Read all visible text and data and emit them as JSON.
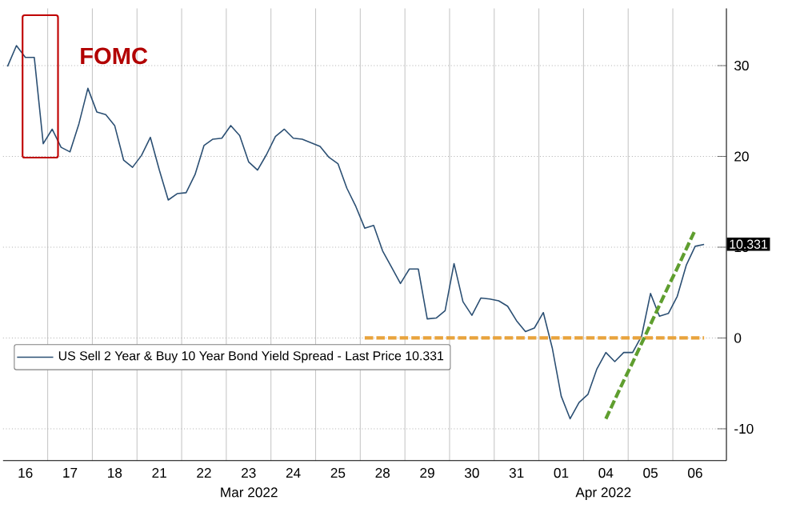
{
  "chart_data": {
    "type": "line",
    "annotations": [
      "FOMC",
      {
        "text": "10.331",
        "y": 10.331
      },
      "Mar 2022",
      "Apr 2022"
    ],
    "categories": [
      null,
      null,
      "16",
      null,
      null,
      null,
      null,
      "17",
      null,
      null,
      null,
      null,
      "18",
      null,
      null,
      null,
      null,
      "21",
      null,
      null,
      null,
      null,
      "22",
      null,
      null,
      null,
      null,
      "23",
      null,
      null,
      null,
      null,
      "24",
      null,
      null,
      null,
      null,
      "25",
      null,
      null,
      null,
      null,
      "28",
      null,
      null,
      null,
      null,
      "29",
      null,
      null,
      null,
      null,
      "30",
      null,
      null,
      null,
      null,
      "31",
      null,
      null,
      null,
      null,
      "01",
      null,
      null,
      null,
      null,
      "04",
      null,
      null,
      null,
      null,
      "05",
      null,
      null,
      null,
      null,
      "06",
      null
    ],
    "ylim": [
      -13.5,
      36.3
    ],
    "yticks": [
      -10,
      0,
      10,
      20,
      30
    ],
    "grid": true,
    "legend": "bottom left",
    "series": [
      {
        "name": "US Sell 2 Year & Buy 10 Year Bond Yield Spread - Last Price 10.331",
        "color": "#2b4f73",
        "values": [
          29.9,
          32.2,
          30.9,
          30.9,
          21.4,
          23.0,
          21.0,
          20.5,
          23.6,
          27.5,
          24.9,
          24.6,
          23.4,
          19.6,
          18.8,
          20.1,
          22.1,
          18.5,
          15.2,
          15.9,
          16.0,
          18.0,
          21.2,
          21.9,
          22.0,
          23.4,
          22.3,
          19.4,
          18.5,
          20.2,
          22.2,
          23.0,
          22.0,
          21.9,
          21.5,
          21.1,
          19.9,
          19.2,
          16.5,
          14.5,
          12.1,
          12.4,
          9.6,
          7.8,
          6.0,
          7.6,
          7.6,
          2.1,
          2.2,
          3.0,
          8.2,
          4.0,
          2.5,
          4.4,
          4.3,
          4.1,
          3.5,
          1.9,
          0.7,
          1.1,
          2.8,
          -1.1,
          -6.4,
          -8.9,
          -7.1,
          -6.2,
          -3.4,
          -1.6,
          -2.6,
          -1.6,
          -1.6,
          0.2,
          4.9,
          2.4,
          2.7,
          4.6,
          8.0,
          10.1,
          10.3
        ]
      },
      {
        "color": "#e8a33c",
        "line_style": "dashed",
        "values": [
          null,
          null,
          null,
          null,
          null,
          null,
          null,
          null,
          null,
          null,
          null,
          null,
          null,
          null,
          null,
          null,
          null,
          null,
          null,
          null,
          null,
          null,
          null,
          null,
          null,
          null,
          null,
          null,
          null,
          null,
          null,
          null,
          null,
          null,
          null,
          null,
          null,
          null,
          null,
          null,
          0,
          0,
          0,
          0,
          0,
          0,
          0,
          0,
          0,
          0,
          0,
          0,
          0,
          0,
          0,
          0,
          0,
          0,
          0,
          0,
          0,
          0,
          0,
          0,
          0,
          0,
          0,
          0,
          0,
          0,
          0,
          0,
          0,
          0,
          0,
          0,
          0,
          0,
          0
        ]
      },
      {
        "color": "#5f9e2f",
        "line_style": "dashed",
        "values": [
          null,
          null,
          null,
          null,
          null,
          null,
          null,
          null,
          null,
          null,
          null,
          null,
          null,
          null,
          null,
          null,
          null,
          null,
          null,
          null,
          null,
          null,
          null,
          null,
          null,
          null,
          null,
          null,
          null,
          null,
          null,
          null,
          null,
          null,
          null,
          null,
          null,
          null,
          null,
          null,
          null,
          null,
          null,
          null,
          null,
          null,
          null,
          null,
          null,
          null,
          null,
          null,
          null,
          null,
          null,
          null,
          null,
          null,
          null,
          null,
          null,
          null,
          null,
          null,
          null,
          null,
          null,
          -8.9,
          -6.8,
          -4.7,
          -2.7,
          -0.6,
          1.5,
          3.6,
          5.7,
          7.7,
          9.8,
          11.9,
          null
        ]
      }
    ]
  }
}
